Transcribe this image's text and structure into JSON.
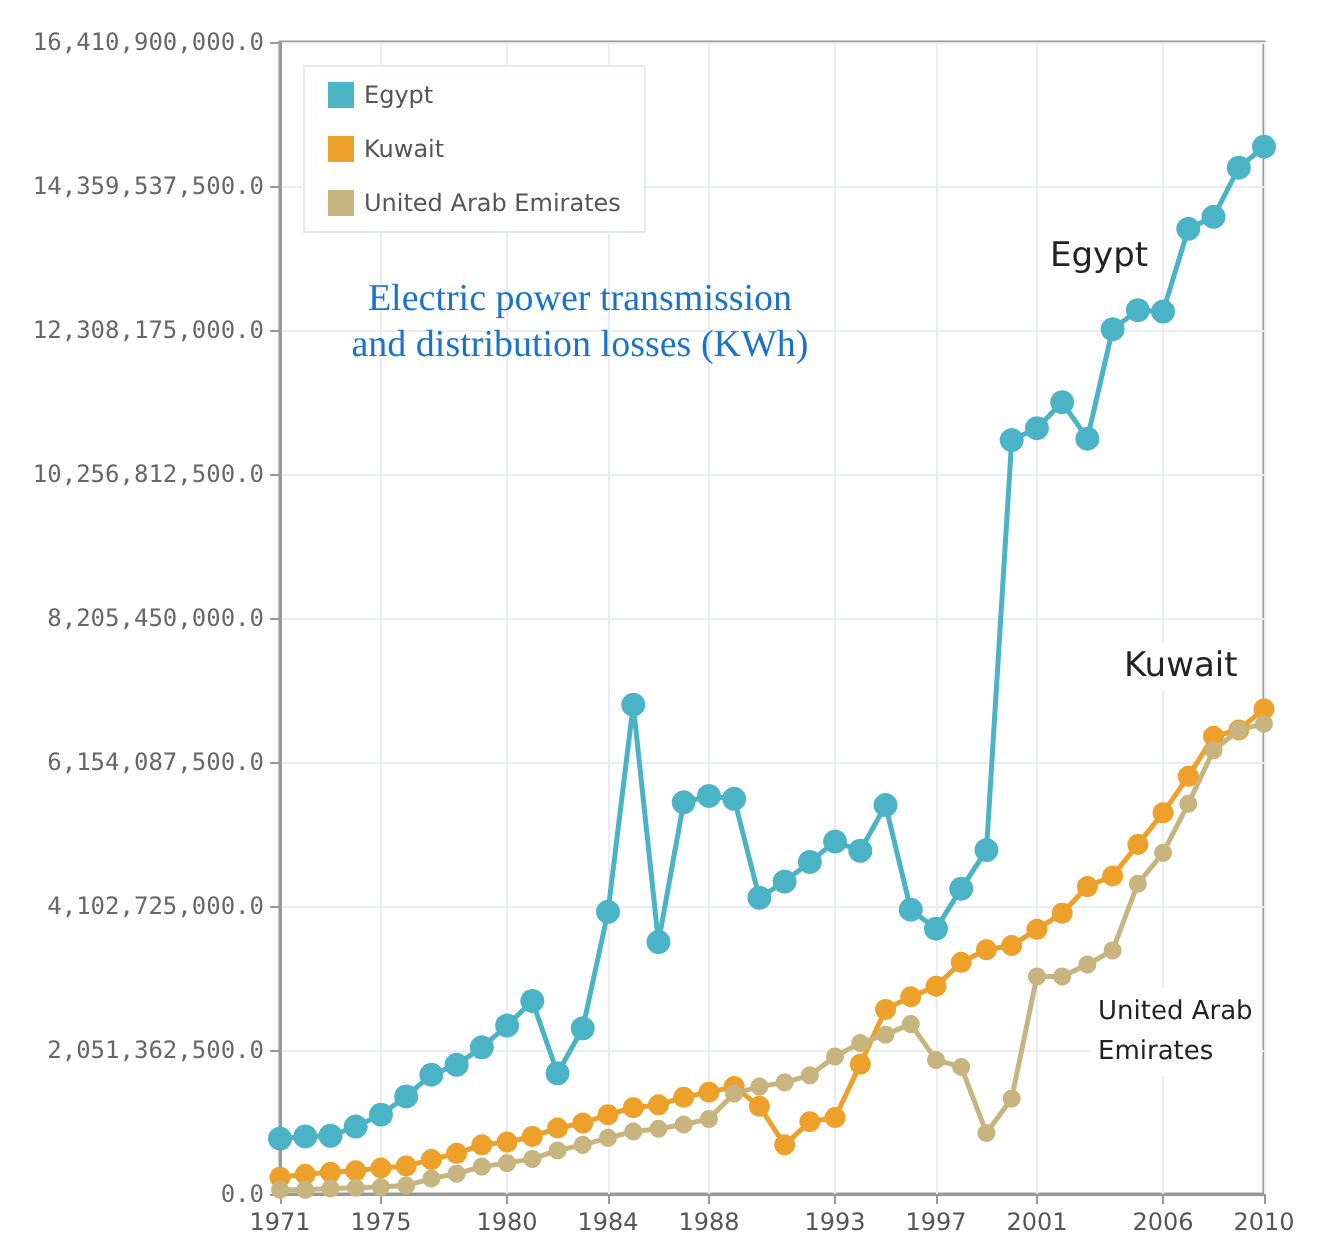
{
  "chart_data": {
    "type": "line",
    "title": "Electric power transmission\nand distribution losses (KWh)",
    "x": [
      1971,
      1972,
      1973,
      1974,
      1975,
      1976,
      1977,
      1978,
      1979,
      1980,
      1981,
      1982,
      1983,
      1984,
      1985,
      1986,
      1987,
      1988,
      1989,
      1990,
      1991,
      1992,
      1993,
      1994,
      1995,
      1996,
      1997,
      1998,
      1999,
      2000,
      2001,
      2002,
      2003,
      2004,
      2005,
      2006,
      2007,
      2008,
      2009,
      2010
    ],
    "series": [
      {
        "name": "Egypt",
        "color": "#4ab3c6",
        "values": [
          790000000,
          820000000,
          830000000,
          960000000,
          1130000000,
          1390000000,
          1700000000,
          1840000000,
          2090000000,
          2400000000,
          2750000000,
          1720000000,
          2360000000,
          4020000000,
          6970000000,
          3590000000,
          5580000000,
          5670000000,
          5630000000,
          4220000000,
          4450000000,
          4730000000,
          5020000000,
          4890000000,
          5540000000,
          4050000000,
          3780000000,
          4350000000,
          4900000000,
          10740000000,
          10910000000,
          11280000000,
          10760000000,
          12320000000,
          12590000000,
          12570000000,
          13750000000,
          13920000000,
          14620000000,
          14920000000
        ]
      },
      {
        "name": "Kuwait",
        "color": "#eea12a",
        "values": [
          240000000,
          280000000,
          310000000,
          330000000,
          370000000,
          400000000,
          490000000,
          580000000,
          700000000,
          740000000,
          820000000,
          940000000,
          1010000000,
          1130000000,
          1230000000,
          1270000000,
          1380000000,
          1450000000,
          1530000000,
          1250000000,
          700000000,
          1030000000,
          1090000000,
          1850000000,
          2630000000,
          2810000000,
          2960000000,
          3300000000,
          3480000000,
          3540000000,
          3770000000,
          4000000000,
          4380000000,
          4530000000,
          4980000000,
          5430000000,
          5950000000,
          6520000000,
          6610000000,
          6910000000
        ]
      },
      {
        "name": "United Arab Emirates",
        "color": "#c7b47f",
        "values": [
          60000000,
          60000000,
          80000000,
          90000000,
          100000000,
          120000000,
          220000000,
          290000000,
          390000000,
          440000000,
          500000000,
          620000000,
          700000000,
          800000000,
          890000000,
          930000000,
          990000000,
          1070000000,
          1430000000,
          1530000000,
          1590000000,
          1690000000,
          1960000000,
          2150000000,
          2270000000,
          2420000000,
          1910000000,
          1810000000,
          870000000,
          1360000000,
          3100000000,
          3100000000,
          3270000000,
          3470000000,
          4420000000,
          4860000000,
          5560000000,
          6320000000,
          6610000000,
          6700000000
        ]
      }
    ],
    "xlim": [
      1971,
      2010
    ],
    "xticks": [
      1971,
      1975,
      1980,
      1984,
      1988,
      1993,
      1997,
      2001,
      2006,
      2010
    ],
    "ylim": [
      0,
      16410900000
    ],
    "yticks": [
      {
        "value": 0,
        "label": "0.0"
      },
      {
        "value": 2051362500,
        "label": "2,051,362,500.0"
      },
      {
        "value": 4102725000,
        "label": "4,102,725,000.0"
      },
      {
        "value": 6154087500,
        "label": "6,154,087,500.0"
      },
      {
        "value": 8205450000,
        "label": "8,205,450,000.0"
      },
      {
        "value": 10256812500,
        "label": "10,256,812,500.0"
      },
      {
        "value": 12308175000,
        "label": "12,308,175,000.0"
      },
      {
        "value": 14359537500,
        "label": "14,359,537,500.0"
      },
      {
        "value": 16410900000,
        "label": "16,410,900,000.0"
      }
    ],
    "annotations": [
      "Egypt",
      "Kuwait",
      "United Arab\nEmirates"
    ],
    "grid": true,
    "legend": "top left",
    "marker": "circle",
    "line_style": "solid"
  }
}
